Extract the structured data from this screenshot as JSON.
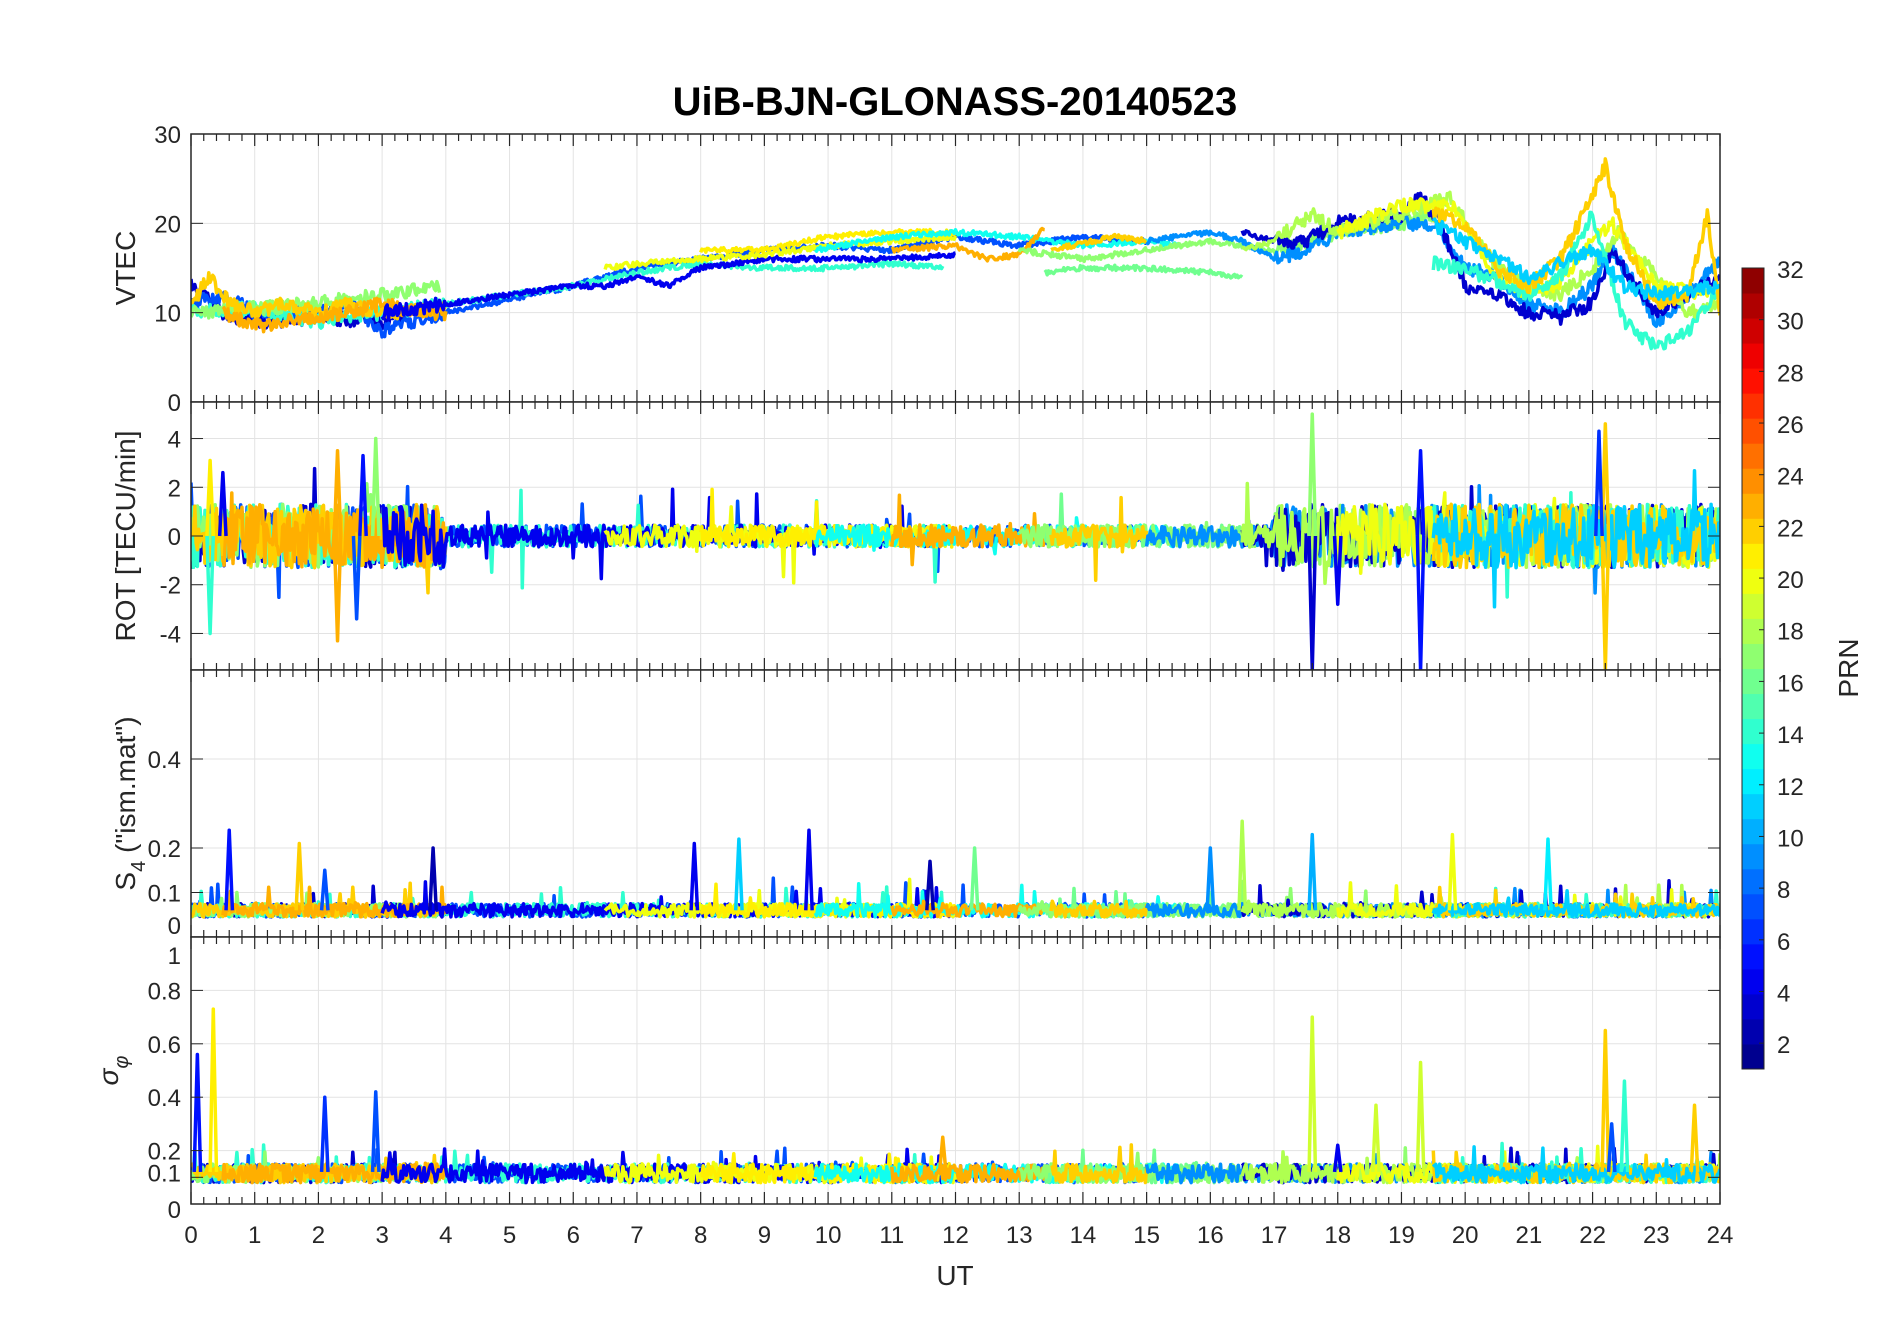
{
  "chart_data": {
    "type": "line",
    "title": "UiB-BJN-GLONASS-20140523",
    "xlabel": "UT",
    "xlim": [
      0,
      24
    ],
    "xticks": [
      0,
      1,
      2,
      3,
      4,
      5,
      6,
      7,
      8,
      9,
      10,
      11,
      12,
      13,
      14,
      15,
      16,
      17,
      18,
      19,
      20,
      21,
      22,
      23,
      24
    ],
    "grid": true,
    "colorbar": {
      "label": "PRN",
      "range": [
        1,
        32
      ],
      "levels": 32,
      "colormap": "jet",
      "ticks": [
        2,
        4,
        6,
        8,
        10,
        12,
        14,
        16,
        18,
        20,
        22,
        24,
        26,
        28,
        30,
        32
      ],
      "placement": "right"
    },
    "panels": [
      {
        "id": "vtec",
        "ylabel": "VTEC",
        "ylim": [
          0,
          30
        ],
        "yticks": [
          0,
          10,
          20,
          30
        ]
      },
      {
        "id": "rot",
        "ylabel": "ROT [TECU/min]",
        "ylim": [
          -5.5,
          5.5
        ],
        "yticks": [
          -4,
          -2,
          0,
          2,
          4
        ]
      },
      {
        "id": "s4",
        "ylabel": "S4 (\"ism.mat\")",
        "ylabel_main": "S",
        "ylabel_sub": "4",
        "ylabel_rest": " (\"ism.mat\")",
        "ylim": [
          0,
          0.6
        ],
        "yticks": [
          0,
          0.1,
          0.2,
          0.4
        ]
      },
      {
        "id": "sigma",
        "ylabel": "σφ",
        "ylabel_main": "σ",
        "ylabel_sub": "φ",
        "ylim": [
          0,
          1
        ],
        "yticks": [
          0,
          0.1,
          0.2,
          0.4,
          0.6,
          0.8,
          1
        ]
      }
    ],
    "tracks": [
      {
        "prn": 3,
        "vtec": [
          [
            0,
            13
          ],
          [
            0.5,
            10
          ],
          [
            1,
            9
          ],
          [
            2,
            9.5
          ],
          [
            3,
            9
          ],
          [
            3.5,
            10
          ]
        ]
      },
      {
        "prn": 7,
        "vtec": [
          [
            0,
            11
          ],
          [
            0.5,
            12
          ],
          [
            1,
            10
          ],
          [
            2,
            10
          ],
          [
            2.5,
            11
          ],
          [
            3,
            8
          ],
          [
            4,
            10
          ],
          [
            5,
            11.5
          ],
          [
            6,
            13
          ],
          [
            7,
            15
          ],
          [
            8,
            16
          ],
          [
            9,
            17
          ],
          [
            10,
            17.5
          ],
          [
            11,
            17
          ],
          [
            12,
            18.5
          ],
          [
            13,
            17.5
          ],
          [
            14,
            18.5
          ],
          [
            15,
            18
          ]
        ]
      },
      {
        "prn": 14,
        "vtec": [
          [
            0,
            10
          ],
          [
            1,
            10.5
          ],
          [
            2,
            9
          ],
          [
            3,
            10
          ],
          [
            4,
            11
          ],
          [
            5,
            12
          ],
          [
            6,
            13
          ],
          [
            7,
            14.5
          ],
          [
            8,
            15.5
          ],
          [
            9,
            15
          ],
          [
            10,
            15
          ],
          [
            11,
            15.5
          ],
          [
            11.8,
            15
          ]
        ]
      },
      {
        "prn": 17,
        "vtec": [
          [
            0,
            10
          ],
          [
            1,
            10.5
          ],
          [
            2,
            11
          ],
          [
            3,
            12
          ],
          [
            3.9,
            13
          ]
        ]
      },
      {
        "prn": 22,
        "vtec": [
          [
            0,
            11
          ],
          [
            0.3,
            14
          ],
          [
            0.6,
            11
          ],
          [
            1,
            10
          ],
          [
            1.5,
            11
          ],
          [
            2,
            10
          ],
          [
            2.5,
            11
          ],
          [
            3,
            10
          ],
          [
            4,
            10.5
          ]
        ]
      },
      {
        "prn": 23,
        "vtec": [
          [
            0.5,
            10
          ],
          [
            1,
            8.5
          ],
          [
            2,
            9.5
          ],
          [
            2.5,
            10
          ],
          [
            3,
            11
          ],
          [
            3.5,
            10
          ],
          [
            4,
            10
          ]
        ]
      },
      {
        "prn": 4,
        "vtec": [
          [
            3,
            10
          ],
          [
            4,
            11
          ],
          [
            5,
            12
          ],
          [
            6,
            13
          ],
          [
            6.5,
            13
          ],
          [
            7,
            14
          ],
          [
            7.5,
            13
          ],
          [
            8,
            15
          ],
          [
            9,
            16
          ],
          [
            10,
            16
          ],
          [
            11,
            16
          ],
          [
            12,
            16.5
          ]
        ]
      },
      {
        "prn": 20,
        "vtec": [
          [
            6.5,
            15
          ],
          [
            7,
            15.5
          ],
          [
            8,
            16
          ],
          [
            9,
            16.5
          ],
          [
            10,
            17.5
          ],
          [
            11,
            18
          ],
          [
            12,
            18.5
          ]
        ]
      },
      {
        "prn": 21,
        "vtec": [
          [
            8,
            17
          ],
          [
            9,
            17
          ],
          [
            10,
            18.5
          ],
          [
            11,
            19
          ],
          [
            12,
            19
          ]
        ]
      },
      {
        "prn": 13,
        "vtec": [
          [
            9.8,
            17
          ],
          [
            11,
            18.5
          ],
          [
            12,
            19
          ],
          [
            13,
            18.5
          ],
          [
            14,
            17.5
          ],
          [
            15,
            18
          ],
          [
            15.5,
            17.5
          ]
        ]
      },
      {
        "prn": 23,
        "vtec": [
          [
            11,
            17
          ],
          [
            12,
            17.5
          ],
          [
            12.5,
            16
          ],
          [
            13,
            16.5
          ],
          [
            13.4,
            19.5
          ]
        ]
      },
      {
        "prn": 16,
        "vtec": [
          [
            13.4,
            14.5
          ],
          [
            14,
            15
          ],
          [
            15,
            15
          ],
          [
            16,
            14.5
          ],
          [
            16.5,
            14
          ]
        ]
      },
      {
        "prn": 17,
        "vtec": [
          [
            13,
            17
          ],
          [
            14,
            16
          ],
          [
            15,
            17
          ],
          [
            16,
            18
          ],
          [
            17,
            17
          ],
          [
            18,
            19
          ],
          [
            19,
            20
          ],
          [
            19.5,
            21
          ]
        ]
      },
      {
        "prn": 22,
        "vtec": [
          [
            13.5,
            17
          ],
          [
            14.5,
            18.5
          ],
          [
            15,
            18
          ]
        ]
      },
      {
        "prn": 9,
        "vtec": [
          [
            15,
            18
          ],
          [
            16,
            19
          ],
          [
            16.5,
            18
          ],
          [
            17,
            16
          ],
          [
            17.5,
            17
          ],
          [
            18,
            19
          ],
          [
            19,
            20
          ],
          [
            19.5,
            20
          ],
          [
            20,
            15
          ],
          [
            20.5,
            14
          ],
          [
            21,
            11
          ],
          [
            21.5,
            10
          ],
          [
            22,
            13
          ],
          [
            22.3,
            17
          ],
          [
            22.6,
            14
          ],
          [
            23,
            9
          ],
          [
            23.5,
            12
          ],
          [
            24,
            16
          ]
        ]
      },
      {
        "prn": 3,
        "vtec": [
          [
            16.5,
            19
          ],
          [
            17,
            18
          ],
          [
            17.5,
            18
          ],
          [
            18,
            20
          ],
          [
            19,
            21
          ],
          [
            19.3,
            23
          ],
          [
            19.6,
            20
          ],
          [
            20,
            13
          ],
          [
            20.5,
            12
          ],
          [
            21,
            10
          ],
          [
            21.5,
            9.5
          ],
          [
            22,
            11
          ],
          [
            22.3,
            17
          ],
          [
            22.6,
            14
          ],
          [
            23,
            10
          ],
          [
            23.5,
            12
          ],
          [
            24,
            14
          ]
        ]
      },
      {
        "prn": 18,
        "vtec": [
          [
            16.5,
            17
          ],
          [
            17,
            18
          ],
          [
            17.6,
            21
          ],
          [
            18,
            19
          ],
          [
            19,
            21
          ],
          [
            19.8,
            23
          ],
          [
            20,
            20
          ],
          [
            20.5,
            15
          ],
          [
            21,
            13
          ],
          [
            21.5,
            12
          ],
          [
            22,
            15
          ],
          [
            22.4,
            19
          ],
          [
            23,
            14
          ],
          [
            23.5,
            10
          ],
          [
            24,
            11
          ]
        ]
      },
      {
        "prn": 20,
        "vtec": [
          [
            18,
            19
          ],
          [
            19,
            22
          ],
          [
            19.8,
            22
          ],
          [
            20.5,
            14
          ],
          [
            21,
            12
          ],
          [
            21.5,
            13.5
          ],
          [
            22,
            18
          ],
          [
            22.3,
            20
          ],
          [
            23,
            13
          ],
          [
            24,
            12
          ]
        ]
      },
      {
        "prn": 14,
        "vtec": [
          [
            19.5,
            15.5
          ],
          [
            20,
            15
          ],
          [
            21,
            12
          ],
          [
            21.5,
            14
          ],
          [
            22,
            21
          ],
          [
            22.5,
            9
          ],
          [
            23,
            6
          ],
          [
            23.5,
            8
          ],
          [
            24,
            13
          ]
        ]
      },
      {
        "prn": 22,
        "vtec": [
          [
            19.5,
            21
          ],
          [
            20,
            20
          ],
          [
            20.5,
            15
          ],
          [
            21,
            13
          ],
          [
            21.5,
            16
          ],
          [
            22,
            23
          ],
          [
            22.2,
            26.5
          ],
          [
            22.5,
            18
          ],
          [
            23,
            11
          ],
          [
            23.5,
            12
          ],
          [
            23.8,
            21
          ],
          [
            24,
            10
          ]
        ]
      },
      {
        "prn": 11,
        "vtec": [
          [
            19.5,
            20
          ],
          [
            20,
            18
          ],
          [
            21,
            14
          ],
          [
            22,
            17
          ],
          [
            22.5,
            13
          ],
          [
            23,
            12
          ],
          [
            24,
            13
          ]
        ]
      }
    ],
    "spikes": {
      "rot": [
        [
          0.5,
          2.6,
          4
        ],
        [
          2.3,
          3.5,
          23
        ],
        [
          2.3,
          -4.3,
          23
        ],
        [
          2.7,
          3.3,
          5
        ],
        [
          2.9,
          4,
          17
        ],
        [
          2.6,
          -3.4,
          7
        ],
        [
          0.3,
          3.1,
          21
        ],
        [
          0.3,
          -4,
          14
        ],
        [
          17.6,
          5,
          17
        ],
        [
          17.6,
          -5.5,
          3
        ],
        [
          19.3,
          3.5,
          5
        ],
        [
          19.3,
          -5.5,
          5
        ],
        [
          22.2,
          4.6,
          22
        ],
        [
          22.2,
          -5.5,
          22
        ],
        [
          22.1,
          4.3,
          6
        ],
        [
          18,
          -2.8,
          4
        ]
      ],
      "s4": [
        [
          0.6,
          0.24,
          5
        ],
        [
          1.7,
          0.21,
          22
        ],
        [
          3.8,
          0.2,
          2
        ],
        [
          7.9,
          0.21,
          4
        ],
        [
          8.6,
          0.22,
          11
        ],
        [
          9.7,
          0.24,
          4
        ],
        [
          16.5,
          0.26,
          18
        ],
        [
          17.6,
          0.23,
          10
        ],
        [
          19.8,
          0.23,
          20
        ],
        [
          21.3,
          0.22,
          12
        ],
        [
          2.1,
          0.15,
          7
        ],
        [
          11.6,
          0.17,
          2
        ],
        [
          12.3,
          0.2,
          16
        ],
        [
          16,
          0.2,
          9
        ]
      ],
      "sigma": [
        [
          0.1,
          0.56,
          5
        ],
        [
          0.35,
          0.73,
          21
        ],
        [
          2.1,
          0.4,
          6
        ],
        [
          2.9,
          0.42,
          7
        ],
        [
          17.6,
          0.7,
          19
        ],
        [
          19.3,
          0.53,
          19
        ],
        [
          22.2,
          0.65,
          22
        ],
        [
          22.5,
          0.46,
          14
        ],
        [
          18,
          0.22,
          4
        ],
        [
          18.6,
          0.37,
          19
        ],
        [
          23.6,
          0.37,
          22
        ],
        [
          22.3,
          0.3,
          7
        ],
        [
          11.8,
          0.25,
          23
        ]
      ]
    }
  }
}
